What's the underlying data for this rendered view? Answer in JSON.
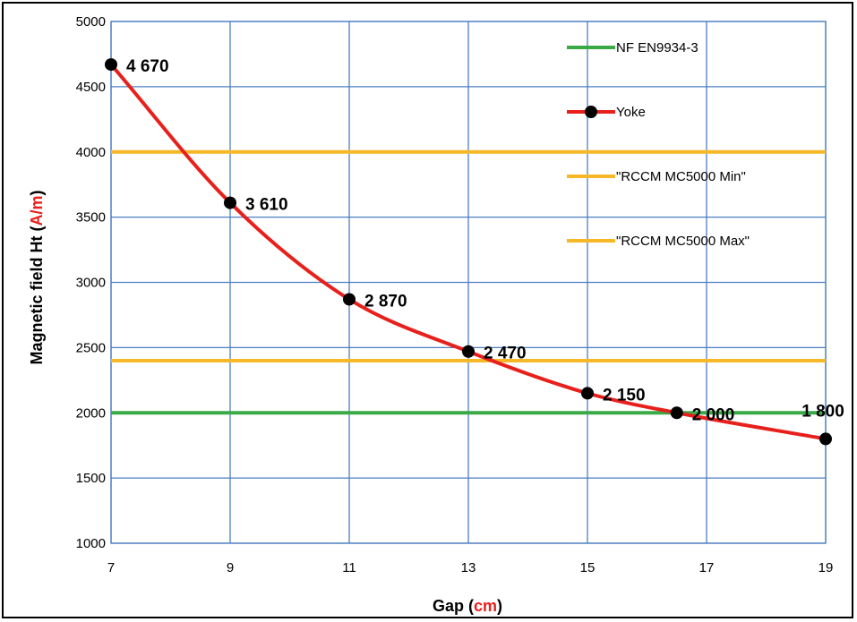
{
  "chart_data": {
    "type": "line",
    "xlabel": {
      "text": "Gap (",
      "unit": "cm",
      "suffix": ")"
    },
    "ylabel": {
      "text": "Magnetic field Ht (",
      "unit": "A/m",
      "suffix": ")"
    },
    "xlim": [
      7,
      19
    ],
    "ylim": [
      1000,
      5000
    ],
    "x_ticks": [
      7,
      9,
      11,
      13,
      15,
      17,
      19
    ],
    "y_ticks": [
      1000,
      1500,
      2000,
      2500,
      3000,
      3500,
      4000,
      4500,
      5000
    ],
    "grid": true,
    "legend_position": "top-right",
    "series": [
      {
        "name": "NF EN9934-3",
        "kind": "hline",
        "y": 2000,
        "color": "#3aaa47"
      },
      {
        "name": "Yoke",
        "kind": "curve",
        "color": "#e8201c",
        "marker_color": "#000000",
        "points": [
          {
            "x": 7,
            "y": 4670,
            "label": "4 670"
          },
          {
            "x": 9,
            "y": 3610,
            "label": "3 610"
          },
          {
            "x": 11,
            "y": 2870,
            "label": "2 870"
          },
          {
            "x": 13,
            "y": 2470,
            "label": "2 470"
          },
          {
            "x": 15,
            "y": 2150,
            "label": "2 150"
          },
          {
            "x": 16.5,
            "y": 2000,
            "label": "2 000"
          },
          {
            "x": 19,
            "y": 1800,
            "label": "1 800"
          }
        ]
      },
      {
        "name": "\"RCCM MC5000 Min\"",
        "kind": "hline",
        "y": 4000,
        "color": "#f6b826"
      },
      {
        "name": "\"RCCM MC5000 Max\"",
        "kind": "hline",
        "y": 2400,
        "color": "#f6b826"
      }
    ],
    "grid_color": "#4b7fc1"
  }
}
